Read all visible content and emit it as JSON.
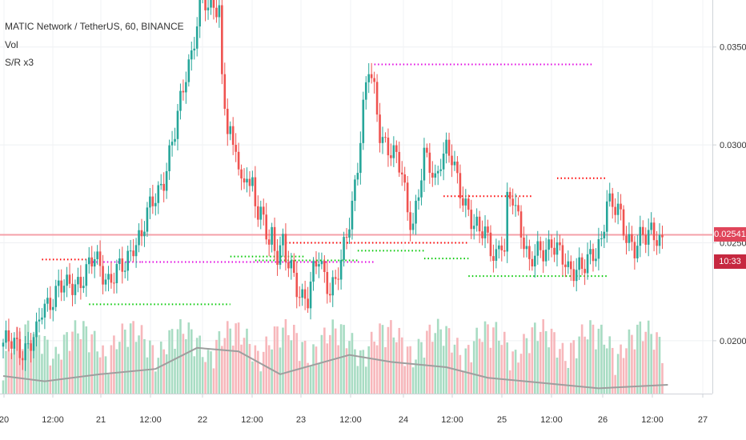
{
  "legend": {
    "symbol_line": "MATIC Network / TetherUS, 60, BINANCE",
    "indicator_1": "Vol",
    "indicator_2": "S/R x3"
  },
  "price_axis": {
    "ticks": [
      "0.03500",
      "0.03000",
      "0.02500",
      "0.02000"
    ],
    "last_price": "0.02541",
    "countdown": "10:33"
  },
  "chart_data": {
    "type": "candlestick",
    "interval": "60",
    "exchange": "BINANCE",
    "symbol": "MATIC Network / TetherUS",
    "ylim": [
      0.0173,
      0.0374
    ],
    "x_tick_labels": [
      "20",
      "12:00",
      "21",
      "12:00",
      "22",
      "12:00",
      "23",
      "12:00",
      "24",
      "12:00",
      "25",
      "12:00",
      "26",
      "12:00",
      "27"
    ],
    "last_price": 0.02541,
    "colors": {
      "up": "#26a69a",
      "down": "#ef5350",
      "volume_up": "#a8dcc3",
      "volume_down": "#f7b7bb",
      "volume_ma": "#9e9e9e",
      "resistance": "#ff0000",
      "support": "#00c800",
      "sr_mid": "#e000e0",
      "last_price_line": "#f5a0a8",
      "price_tag": "#e0455a",
      "countdown_tag": "#c62840"
    },
    "close_path": [
      [
        0,
        0.0199
      ],
      [
        7,
        0.0196
      ],
      [
        12,
        0.0202
      ],
      [
        14,
        0.0215
      ],
      [
        20,
        0.0228
      ],
      [
        23,
        0.0226
      ],
      [
        28,
        0.0232
      ],
      [
        33,
        0.0241
      ],
      [
        38,
        0.0232
      ],
      [
        44,
        0.0237
      ],
      [
        47,
        0.0251
      ],
      [
        50,
        0.0254
      ],
      [
        52,
        0.0263
      ],
      [
        55,
        0.0274
      ],
      [
        58,
        0.0284
      ],
      [
        62,
        0.0305
      ],
      [
        66,
        0.0338
      ],
      [
        68,
        0.0348
      ],
      [
        70,
        0.0362
      ],
      [
        72,
        0.0374
      ],
      [
        74,
        0.0368
      ],
      [
        76,
        0.0374
      ],
      [
        78,
        0.0371
      ],
      [
        79,
        0.0334
      ],
      [
        80,
        0.0322
      ],
      [
        81,
        0.0306
      ],
      [
        82,
        0.0302
      ],
      [
        83,
        0.0296
      ],
      [
        84,
        0.03
      ],
      [
        85,
        0.0288
      ],
      [
        86,
        0.028
      ],
      [
        88,
        0.029
      ],
      [
        89,
        0.0278
      ],
      [
        90,
        0.0279
      ],
      [
        91,
        0.027
      ],
      [
        92,
        0.0262
      ],
      [
        94,
        0.0261
      ],
      [
        95,
        0.0257
      ],
      [
        96,
        0.0252
      ],
      [
        97,
        0.0256
      ],
      [
        98,
        0.0249
      ],
      [
        99,
        0.0245
      ],
      [
        101,
        0.0248
      ],
      [
        102,
        0.024
      ],
      [
        104,
        0.0236
      ],
      [
        106,
        0.0229
      ],
      [
        108,
        0.0224
      ],
      [
        110,
        0.0221
      ],
      [
        112,
        0.0233
      ],
      [
        114,
        0.0242
      ],
      [
        116,
        0.0234
      ],
      [
        118,
        0.0228
      ],
      [
        120,
        0.023
      ],
      [
        122,
        0.0238
      ],
      [
        124,
        0.0253
      ],
      [
        126,
        0.0271
      ],
      [
        128,
        0.0292
      ],
      [
        130,
        0.0318
      ],
      [
        132,
        0.0338
      ],
      [
        134,
        0.0326
      ],
      [
        136,
        0.0308
      ],
      [
        138,
        0.0302
      ],
      [
        140,
        0.0296
      ],
      [
        142,
        0.0291
      ],
      [
        144,
        0.0285
      ],
      [
        146,
        0.0268
      ],
      [
        148,
        0.0261
      ],
      [
        150,
        0.0275
      ],
      [
        152,
        0.0292
      ],
      [
        154,
        0.0289
      ],
      [
        156,
        0.0283
      ],
      [
        158,
        0.0295
      ],
      [
        160,
        0.0297
      ],
      [
        162,
        0.0291
      ],
      [
        164,
        0.0281
      ],
      [
        166,
        0.0274
      ],
      [
        168,
        0.0268
      ],
      [
        170,
        0.0258
      ],
      [
        172,
        0.0254
      ],
      [
        174,
        0.0255
      ],
      [
        176,
        0.0249
      ],
      [
        178,
        0.0245
      ],
      [
        180,
        0.025
      ],
      [
        181,
        0.0244
      ],
      [
        182,
        0.0268
      ],
      [
        184,
        0.0273
      ],
      [
        186,
        0.0264
      ],
      [
        188,
        0.0253
      ],
      [
        190,
        0.0238
      ],
      [
        192,
        0.0242
      ],
      [
        194,
        0.0245
      ],
      [
        196,
        0.0248
      ],
      [
        198,
        0.0252
      ],
      [
        200,
        0.0246
      ],
      [
        202,
        0.024
      ],
      [
        204,
        0.0235
      ],
      [
        206,
        0.0238
      ],
      [
        208,
        0.024
      ],
      [
        210,
        0.0238
      ],
      [
        212,
        0.024
      ],
      [
        214,
        0.0244
      ],
      [
        216,
        0.0253
      ],
      [
        218,
        0.0274
      ],
      [
        220,
        0.0268
      ],
      [
        222,
        0.0265
      ],
      [
        224,
        0.0256
      ],
      [
        226,
        0.0253
      ],
      [
        228,
        0.0249
      ],
      [
        230,
        0.0252
      ],
      [
        232,
        0.0251
      ],
      [
        234,
        0.0255
      ],
      [
        236,
        0.0255
      ],
      [
        238,
        0.0252
      ]
    ],
    "volume_ma_path": [
      [
        0,
        0.2
      ],
      [
        15,
        0.14
      ],
      [
        35,
        0.22
      ],
      [
        55,
        0.28
      ],
      [
        70,
        0.52
      ],
      [
        85,
        0.48
      ],
      [
        100,
        0.22
      ],
      [
        125,
        0.44
      ],
      [
        140,
        0.36
      ],
      [
        160,
        0.3
      ],
      [
        175,
        0.18
      ],
      [
        195,
        0.12
      ],
      [
        215,
        0.06
      ],
      [
        240,
        0.1
      ]
    ],
    "sr_levels": [
      {
        "kind": "resistance",
        "price": 0.02415,
        "from": 14,
        "to": 30
      },
      {
        "kind": "support",
        "price": 0.02186,
        "from": 31,
        "to": 82
      },
      {
        "kind": "sr-mid",
        "price": 0.02402,
        "from": 31,
        "to": 50
      },
      {
        "kind": "sr-mid",
        "price": 0.02402,
        "from": 50,
        "to": 134
      },
      {
        "kind": "resistance",
        "price": 0.025,
        "from": 102,
        "to": 168
      },
      {
        "kind": "support",
        "price": 0.0243,
        "from": 82,
        "to": 109
      },
      {
        "kind": "support",
        "price": 0.0241,
        "from": 91,
        "to": 128
      },
      {
        "kind": "sr-mid",
        "price": 0.03411,
        "from": 134,
        "to": 213
      },
      {
        "kind": "support",
        "price": 0.0246,
        "from": 128,
        "to": 152
      },
      {
        "kind": "resistance",
        "price": 0.02738,
        "from": 159,
        "to": 191
      },
      {
        "kind": "support",
        "price": 0.0242,
        "from": 152,
        "to": 168
      },
      {
        "kind": "support",
        "price": 0.0233,
        "from": 168,
        "to": 218
      },
      {
        "kind": "resistance",
        "price": 0.0283,
        "from": 200,
        "to": 218
      }
    ]
  }
}
